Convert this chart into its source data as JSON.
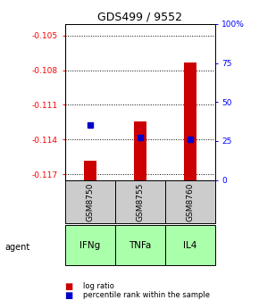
{
  "title": "GDS499 / 9552",
  "categories": [
    "IFNg",
    "TNFa",
    "IL4"
  ],
  "sample_names": [
    "GSM8750",
    "GSM8755",
    "GSM8760"
  ],
  "log_ratios": [
    -0.1158,
    -0.1124,
    -0.1073
  ],
  "percentile_ranks": [
    35,
    27,
    26
  ],
  "ylim_left": [
    -0.1175,
    -0.104
  ],
  "yticks_left": [
    -0.117,
    -0.114,
    -0.111,
    -0.108,
    -0.105
  ],
  "yticks_right": [
    0,
    25,
    50,
    75,
    100
  ],
  "bar_color": "#cc0000",
  "percentile_color": "#0000cc",
  "sample_bg": "#cccccc",
  "agent_bg": "#aaffaa",
  "legend_log_label": "log ratio",
  "legend_pct_label": "percentile rank within the sample"
}
